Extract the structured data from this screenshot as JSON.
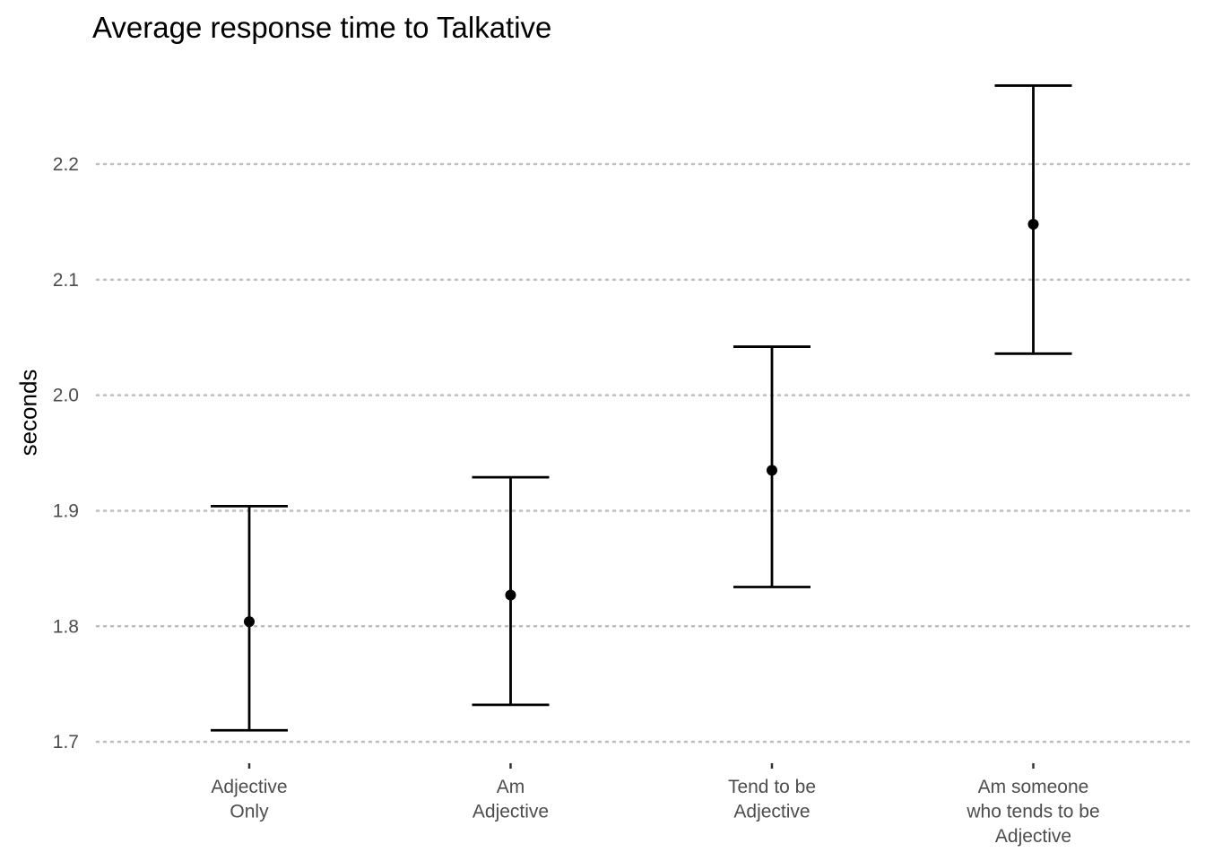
{
  "chart_data": {
    "type": "errorbar",
    "title": "Average response time to Talkative",
    "ylabel": "seconds",
    "xlabel": "",
    "ylim": [
      1.69,
      2.28
    ],
    "yticks": [
      1.7,
      1.8,
      1.9,
      2.0,
      2.1,
      2.2
    ],
    "ytick_labels": [
      "1.7",
      "1.8",
      "1.9",
      "2.0",
      "2.1",
      "2.2"
    ],
    "grid": "horizontal-dotted",
    "categories": [
      [
        "Adjective",
        "Only"
      ],
      [
        "Am",
        "Adjective"
      ],
      [
        "Tend to be",
        "Adjective"
      ],
      [
        "Am someone",
        "who tends to be",
        "Adjective"
      ]
    ],
    "values": [
      1.804,
      1.827,
      1.935,
      2.148
    ],
    "lower": [
      1.71,
      1.732,
      1.834,
      2.036
    ],
    "upper": [
      1.904,
      1.929,
      2.042,
      2.268
    ]
  }
}
